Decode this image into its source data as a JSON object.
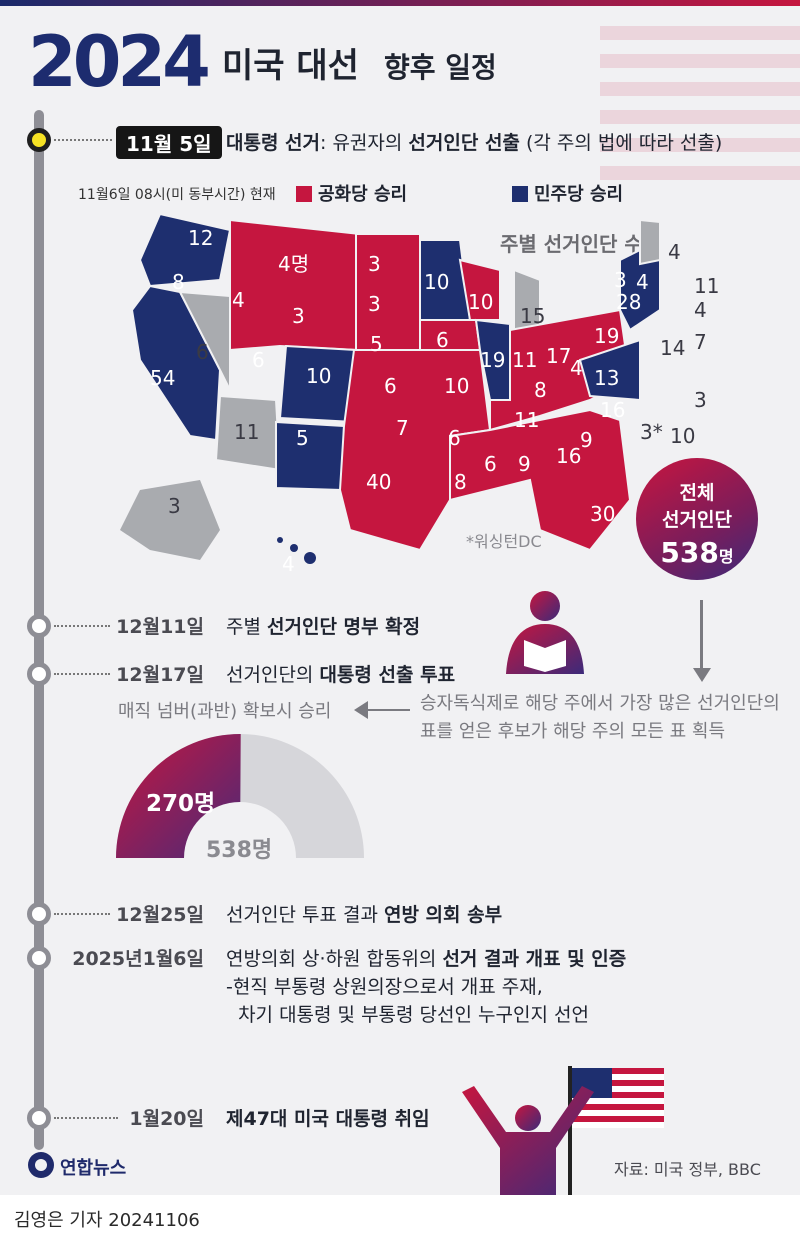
{
  "title": {
    "year": "2024",
    "main": "미국 대선",
    "sub": "향후 일정"
  },
  "timeline": [
    {
      "date": "11월 5일",
      "parts": [
        {
          "t": "대통령 선거",
          "b": true
        },
        {
          "t": ": 유권자의 ",
          "b": false
        },
        {
          "t": "선거인단 선출",
          "b": true
        },
        {
          "t": " (각 주의 법에 따라 선출)",
          "b": false
        }
      ]
    },
    {
      "date": "12월11일",
      "parts": [
        {
          "t": "주별 ",
          "b": false
        },
        {
          "t": "선거인단 명부 확정",
          "b": true
        }
      ]
    },
    {
      "date": "12월17일",
      "parts": [
        {
          "t": "선거인단의 ",
          "b": false
        },
        {
          "t": "대통령 선출 투표",
          "b": true
        }
      ]
    },
    {
      "date": "12월25일",
      "parts": [
        {
          "t": "선거인단 투표 결과 ",
          "b": false
        },
        {
          "t": "연방 의회 송부",
          "b": true
        }
      ]
    },
    {
      "date": "2025년1월6일",
      "parts": [
        {
          "t": "연방의회 상·하원 합동위의 ",
          "b": false
        },
        {
          "t": "선거 결과 개표 및 인증",
          "b": true
        }
      ],
      "extra": [
        "-현직 부통령 상원의장으로서 개표 주재,",
        "  차기 대통령 및 부통령 당선인 누구인지 선언"
      ]
    },
    {
      "date": "1월20일",
      "parts": [
        {
          "t": "제47대 미국 대통령 취임",
          "b": true
        }
      ]
    }
  ],
  "map": {
    "as_of": "11월6일 08시(미 동부시간) 현재",
    "legend_rep": "공화당 승리",
    "legend_dem": "민주당 승리",
    "ev_caption": "주별 선거인단 수",
    "dc_note": "*워싱턴DC",
    "states": [
      {
        "n": "12",
        "p": "D"
      },
      {
        "n": "8",
        "p": "D"
      },
      {
        "n": "54",
        "p": "D"
      },
      {
        "n": "6",
        "p": "U"
      },
      {
        "n": "4",
        "p": "R"
      },
      {
        "n": "4명",
        "p": "R"
      },
      {
        "n": "3",
        "p": "R"
      },
      {
        "n": "3",
        "p": "R"
      },
      {
        "n": "3",
        "p": "R"
      },
      {
        "n": "6",
        "p": "R"
      },
      {
        "n": "10",
        "p": "D"
      },
      {
        "n": "5",
        "p": "D"
      },
      {
        "n": "11",
        "p": "U"
      },
      {
        "n": "5",
        "p": "R"
      },
      {
        "n": "6",
        "p": "R"
      },
      {
        "n": "7",
        "p": "R"
      },
      {
        "n": "40",
        "p": "R"
      },
      {
        "n": "10",
        "p": "D"
      },
      {
        "n": "10",
        "p": "R"
      },
      {
        "n": "6",
        "p": "R"
      },
      {
        "n": "10",
        "p": "R"
      },
      {
        "n": "6",
        "p": "R"
      },
      {
        "n": "8",
        "p": "R"
      },
      {
        "n": "19",
        "p": "D"
      },
      {
        "n": "15",
        "p": "U"
      },
      {
        "n": "11",
        "p": "R"
      },
      {
        "n": "17",
        "p": "R"
      },
      {
        "n": "8",
        "p": "R"
      },
      {
        "n": "11",
        "p": "R"
      },
      {
        "n": "6",
        "p": "R"
      },
      {
        "n": "9",
        "p": "R"
      },
      {
        "n": "16",
        "p": "R"
      },
      {
        "n": "30",
        "p": "R"
      },
      {
        "n": "9",
        "p": "R"
      },
      {
        "n": "16",
        "p": "R"
      },
      {
        "n": "19",
        "p": "R"
      },
      {
        "n": "4",
        "p": "R"
      },
      {
        "n": "13",
        "p": "D"
      },
      {
        "n": "28",
        "p": "D"
      },
      {
        "n": "3",
        "p": "D"
      },
      {
        "n": "4",
        "p": "D"
      },
      {
        "n": "4",
        "p": "U"
      },
      {
        "n": "11",
        "p": "D"
      },
      {
        "n": "4",
        "p": "D"
      },
      {
        "n": "7",
        "p": "D"
      },
      {
        "n": "14",
        "p": "D"
      },
      {
        "n": "3",
        "p": "D"
      },
      {
        "n": "10",
        "p": "D"
      },
      {
        "n": "3*",
        "p": "D"
      },
      {
        "n": "3",
        "p": "U"
      },
      {
        "n": "4",
        "p": "D"
      }
    ]
  },
  "total": {
    "line1": "전체",
    "line2": "선거인단",
    "num": "538",
    "unit": "명"
  },
  "magic": {
    "left": "매직 넘버(과반) 확보시 승리",
    "right": "승자독식제로 해당 주에서 가장 많은 선거인단의 표를 얻은 후보가 해당 주의 모든 표 획득"
  },
  "gauge": {
    "win_value": 270,
    "total_value": 538,
    "win_label": "270명",
    "total_label": "538명"
  },
  "source": "자료: 미국 정부, BBC",
  "logo": "연합뉴스",
  "byline": "김영은 기자  20241106",
  "colors": {
    "rep": "#c5163f",
    "dem": "#1e2f6f",
    "undecided": "#a9abaf",
    "timeline": "#8e8e95"
  }
}
